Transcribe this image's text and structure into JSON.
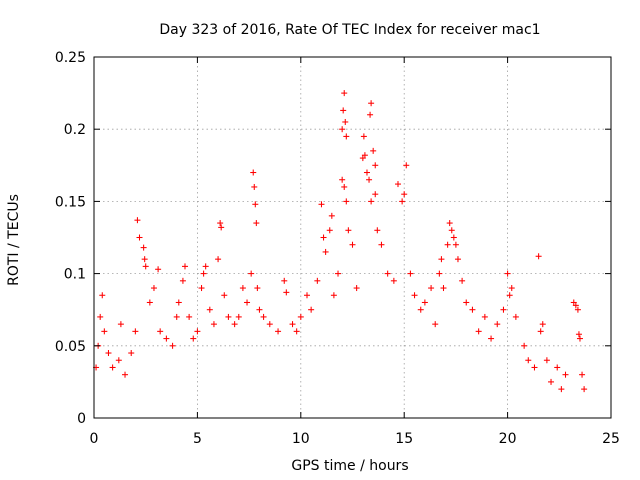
{
  "chart_data": {
    "type": "scatter",
    "title": "Day 323 of 2016, Rate Of TEC Index for receiver mac1",
    "xlabel": "GPS time / hours",
    "ylabel": "ROTI / TECUs",
    "xlim": [
      0,
      25
    ],
    "ylim": [
      0,
      0.25
    ],
    "xticks": [
      0,
      5,
      10,
      15,
      20,
      25
    ],
    "xtick_labels": [
      "0",
      "5",
      "10",
      "15",
      "20",
      "25"
    ],
    "yticks": [
      0,
      0.05,
      0.1,
      0.15,
      0.2,
      0.25
    ],
    "ytick_labels": [
      "0",
      "0.05",
      "0.1",
      "0.15",
      "0.2",
      "0.25"
    ],
    "grid": true,
    "marker": "+",
    "color": "#ff0000",
    "series": [
      {
        "points": [
          [
            0.1,
            0.035
          ],
          [
            0.2,
            0.05
          ],
          [
            0.3,
            0.07
          ],
          [
            0.4,
            0.085
          ],
          [
            0.5,
            0.06
          ],
          [
            0.7,
            0.045
          ],
          [
            0.9,
            0.035
          ],
          [
            1.2,
            0.04
          ],
          [
            1.3,
            0.065
          ],
          [
            1.5,
            0.03
          ],
          [
            1.8,
            0.045
          ],
          [
            2.0,
            0.06
          ],
          [
            2.1,
            0.137
          ],
          [
            2.2,
            0.125
          ],
          [
            2.4,
            0.118
          ],
          [
            2.45,
            0.11
          ],
          [
            2.5,
            0.105
          ],
          [
            2.7,
            0.08
          ],
          [
            2.9,
            0.09
          ],
          [
            3.1,
            0.103
          ],
          [
            3.2,
            0.06
          ],
          [
            3.5,
            0.055
          ],
          [
            3.8,
            0.05
          ],
          [
            4.0,
            0.07
          ],
          [
            4.1,
            0.08
          ],
          [
            4.3,
            0.095
          ],
          [
            4.4,
            0.105
          ],
          [
            4.6,
            0.07
          ],
          [
            4.8,
            0.055
          ],
          [
            5.0,
            0.06
          ],
          [
            5.2,
            0.09
          ],
          [
            5.3,
            0.1
          ],
          [
            5.4,
            0.105
          ],
          [
            5.6,
            0.075
          ],
          [
            5.8,
            0.065
          ],
          [
            6.0,
            0.11
          ],
          [
            6.1,
            0.135
          ],
          [
            6.15,
            0.132
          ],
          [
            6.3,
            0.085
          ],
          [
            6.5,
            0.07
          ],
          [
            6.8,
            0.065
          ],
          [
            7.0,
            0.07
          ],
          [
            7.2,
            0.09
          ],
          [
            7.4,
            0.08
          ],
          [
            7.6,
            0.1
          ],
          [
            7.7,
            0.17
          ],
          [
            7.75,
            0.16
          ],
          [
            7.8,
            0.148
          ],
          [
            7.85,
            0.135
          ],
          [
            7.9,
            0.09
          ],
          [
            8.0,
            0.075
          ],
          [
            8.2,
            0.07
          ],
          [
            8.5,
            0.065
          ],
          [
            8.9,
            0.06
          ],
          [
            9.2,
            0.095
          ],
          [
            9.3,
            0.087
          ],
          [
            9.6,
            0.065
          ],
          [
            9.8,
            0.06
          ],
          [
            10.0,
            0.07
          ],
          [
            10.3,
            0.085
          ],
          [
            10.5,
            0.075
          ],
          [
            10.8,
            0.095
          ],
          [
            11.0,
            0.148
          ],
          [
            11.1,
            0.125
          ],
          [
            11.2,
            0.115
          ],
          [
            11.4,
            0.13
          ],
          [
            11.5,
            0.14
          ],
          [
            11.6,
            0.085
          ],
          [
            11.8,
            0.1
          ],
          [
            12.0,
            0.2
          ],
          [
            12.05,
            0.213
          ],
          [
            12.1,
            0.225
          ],
          [
            12.15,
            0.205
          ],
          [
            12.2,
            0.195
          ],
          [
            12.0,
            0.165
          ],
          [
            12.1,
            0.16
          ],
          [
            12.2,
            0.15
          ],
          [
            12.3,
            0.13
          ],
          [
            12.5,
            0.12
          ],
          [
            12.7,
            0.09
          ],
          [
            13.0,
            0.18
          ],
          [
            13.05,
            0.195
          ],
          [
            13.1,
            0.182
          ],
          [
            13.2,
            0.17
          ],
          [
            13.3,
            0.165
          ],
          [
            13.35,
            0.21
          ],
          [
            13.4,
            0.218
          ],
          [
            13.5,
            0.185
          ],
          [
            13.6,
            0.175
          ],
          [
            13.4,
            0.15
          ],
          [
            13.6,
            0.155
          ],
          [
            13.7,
            0.13
          ],
          [
            13.9,
            0.12
          ],
          [
            14.2,
            0.1
          ],
          [
            14.5,
            0.095
          ],
          [
            14.7,
            0.162
          ],
          [
            14.9,
            0.15
          ],
          [
            15.0,
            0.155
          ],
          [
            15.1,
            0.175
          ],
          [
            15.3,
            0.1
          ],
          [
            15.5,
            0.085
          ],
          [
            15.8,
            0.075
          ],
          [
            16.0,
            0.08
          ],
          [
            16.3,
            0.09
          ],
          [
            16.5,
            0.065
          ],
          [
            16.7,
            0.1
          ],
          [
            16.8,
            0.11
          ],
          [
            16.9,
            0.09
          ],
          [
            17.1,
            0.12
          ],
          [
            17.2,
            0.135
          ],
          [
            17.3,
            0.13
          ],
          [
            17.4,
            0.125
          ],
          [
            17.5,
            0.12
          ],
          [
            17.6,
            0.11
          ],
          [
            17.8,
            0.095
          ],
          [
            18.0,
            0.08
          ],
          [
            18.3,
            0.075
          ],
          [
            18.6,
            0.06
          ],
          [
            18.9,
            0.07
          ],
          [
            19.2,
            0.055
          ],
          [
            19.5,
            0.065
          ],
          [
            19.8,
            0.075
          ],
          [
            20.0,
            0.1
          ],
          [
            20.1,
            0.085
          ],
          [
            20.2,
            0.09
          ],
          [
            20.4,
            0.07
          ],
          [
            20.8,
            0.05
          ],
          [
            21.0,
            0.04
          ],
          [
            21.3,
            0.035
          ],
          [
            21.5,
            0.112
          ],
          [
            21.6,
            0.06
          ],
          [
            21.7,
            0.065
          ],
          [
            21.9,
            0.04
          ],
          [
            22.1,
            0.025
          ],
          [
            22.4,
            0.035
          ],
          [
            22.6,
            0.02
          ],
          [
            22.8,
            0.03
          ],
          [
            23.2,
            0.08
          ],
          [
            23.3,
            0.078
          ],
          [
            23.4,
            0.075
          ],
          [
            23.45,
            0.058
          ],
          [
            23.5,
            0.055
          ],
          [
            23.6,
            0.03
          ],
          [
            23.7,
            0.02
          ]
        ]
      }
    ]
  }
}
